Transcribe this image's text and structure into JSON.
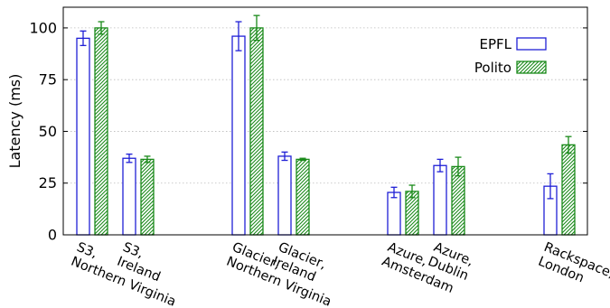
{
  "chart_data": {
    "type": "bar",
    "categories": [
      [
        "S3,",
        "Northern Virginia"
      ],
      [
        "S3,",
        "Ireland"
      ],
      [
        "Glacier,",
        "Northern Virginia"
      ],
      [
        "Glacier,",
        "Ireland"
      ],
      [
        "Azure,",
        "Amsterdam"
      ],
      [
        "Azure,",
        "Dublin"
      ],
      [
        "Rackspace,",
        "London"
      ]
    ],
    "series": [
      {
        "name": "EPFL",
        "color": "#1f1fd6",
        "fill": "none",
        "values": [
          95,
          37,
          96,
          38,
          20.5,
          33.5,
          23.5
        ],
        "error": [
          3.5,
          2,
          7,
          2,
          2.5,
          3,
          6
        ]
      },
      {
        "name": "Polito",
        "color": "#1a8a1a",
        "fill": "hatched",
        "values": [
          100,
          36.5,
          100,
          36.5,
          21,
          33,
          43.5
        ],
        "error": [
          3,
          1.5,
          6,
          0.5,
          3,
          4.5,
          4
        ]
      }
    ],
    "ylabel": "Latency (ms)",
    "xlabel": "",
    "ylim": [
      0,
      110
    ],
    "yticks": [
      0,
      25,
      50,
      75,
      100
    ],
    "grid": true,
    "legend_position": "top-right"
  }
}
